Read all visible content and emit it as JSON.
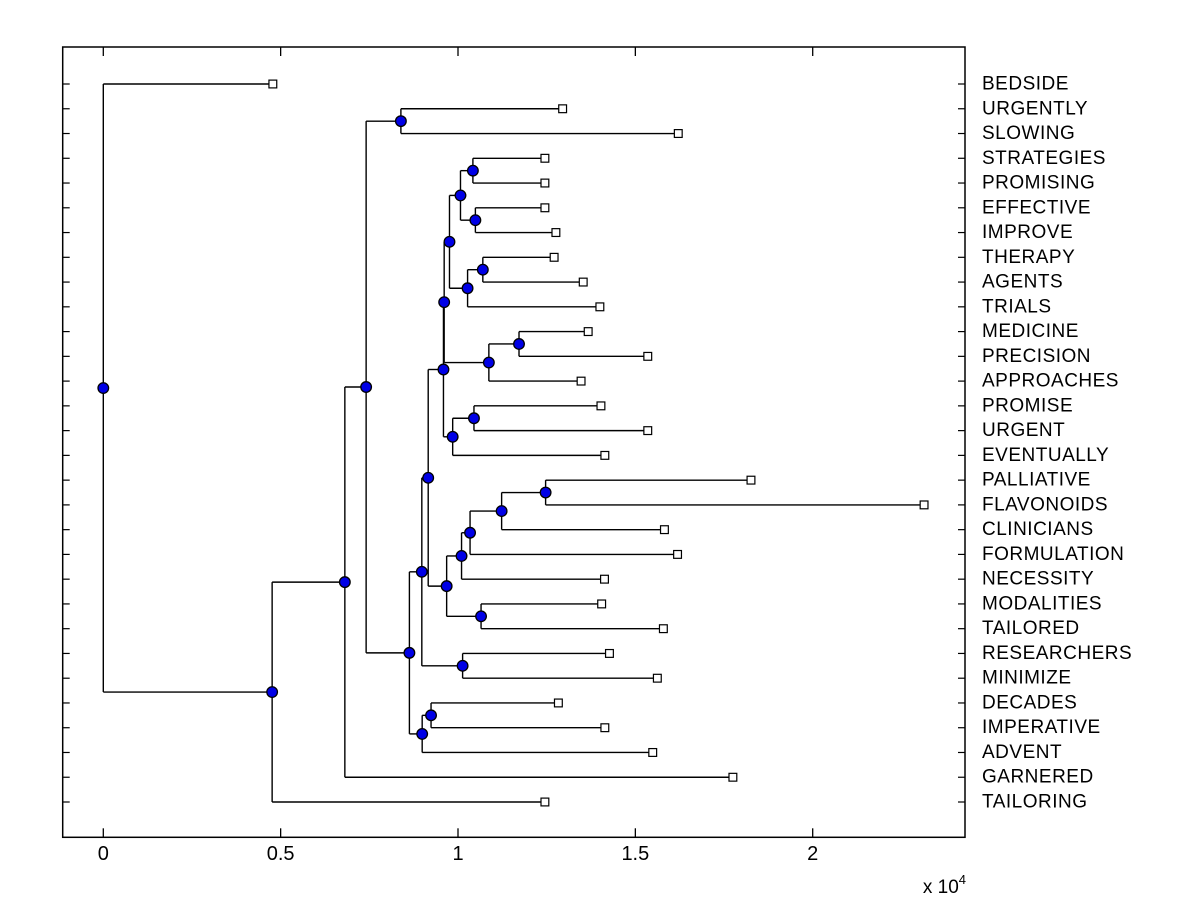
{
  "chart_data": {
    "type": "dendrogram",
    "title": "",
    "orientation": "left-to-right",
    "x_axis": {
      "tick_labels": [
        "0",
        "0.5",
        "1",
        "1.5",
        "2"
      ],
      "tick_values": [
        0,
        0.5,
        1,
        1.5,
        2
      ],
      "scale_text": "x 10",
      "scale_exponent": "4",
      "unit_multiplier": 10000,
      "range": [
        -0.115,
        2.43
      ]
    },
    "y_axis": {
      "rows": 30,
      "tick_every_row": true
    },
    "legend": null,
    "grid": false,
    "leaf_order": [
      "BEDSIDE",
      "URGENTLY",
      "SLOWING",
      "STRATEGIES",
      "PROMISING",
      "EFFECTIVE",
      "IMPROVE",
      "THERAPY",
      "AGENTS",
      "TRIALS",
      "MEDICINE",
      "PRECISION",
      "APPROACHES",
      "PROMISE",
      "URGENT",
      "EVENTUALLY",
      "PALLIATIVE",
      "FLAVONOIDS",
      "CLINICIANS",
      "FORMULATION",
      "NECESSITY",
      "MODALITIES",
      "TAILORED",
      "RESEARCHERS",
      "MINIMIZE",
      "DECADES",
      "IMPERATIVE",
      "ADVENT",
      "GARNERED",
      "TAILORING"
    ],
    "tree": {
      "x": 0.0,
      "c": [
        {
          "x": 0.478,
          "label": "BEDSIDE"
        },
        {
          "x": 0.476,
          "c": [
            {
              "x": 0.681,
              "c": [
                {
                  "x": 0.741,
                  "c": [
                    {
                      "x": 0.839,
                      "c": [
                        {
                          "x": 1.295,
                          "label": "URGENTLY"
                        },
                        {
                          "x": 1.621,
                          "label": "SLOWING"
                        }
                      ]
                    },
                    {
                      "x": 0.863,
                      "c": [
                        {
                          "x": 0.898,
                          "c": [
                            {
                              "x": 0.916,
                              "c": [
                                {
                                  "x": 0.959,
                                  "c": [
                                    {
                                      "x": 0.961,
                                      "c": [
                                        {
                                          "x": 0.976,
                                          "c": [
                                            {
                                              "x": 1.007,
                                              "c": [
                                                {
                                                  "x": 1.042,
                                                  "c": [
                                                    {
                                                      "x": 1.245,
                                                      "label": "STRATEGIES"
                                                    },
                                                    {
                                                      "x": 1.245,
                                                      "label": "PROMISING"
                                                    }
                                                  ]
                                                },
                                                {
                                                  "x": 1.049,
                                                  "c": [
                                                    {
                                                      "x": 1.245,
                                                      "label": "EFFECTIVE"
                                                    },
                                                    {
                                                      "x": 1.276,
                                                      "label": "IMPROVE"
                                                    }
                                                  ]
                                                }
                                              ]
                                            },
                                            {
                                              "x": 1.027,
                                              "c": [
                                                {
                                                  "x": 1.07,
                                                  "c": [
                                                    {
                                                      "x": 1.271,
                                                      "label": "THERAPY"
                                                    },
                                                    {
                                                      "x": 1.353,
                                                      "label": "AGENTS"
                                                    }
                                                  ]
                                                },
                                                {
                                                  "x": 1.4,
                                                  "label": "TRIALS"
                                                }
                                              ]
                                            }
                                          ]
                                        },
                                        {
                                          "x": 1.087,
                                          "c": [
                                            {
                                              "x": 1.172,
                                              "c": [
                                                {
                                                  "x": 1.367,
                                                  "label": "MEDICINE"
                                                },
                                                {
                                                  "x": 1.535,
                                                  "label": "PRECISION"
                                                }
                                              ]
                                            },
                                            {
                                              "x": 1.347,
                                              "label": "APPROACHES"
                                            }
                                          ]
                                        }
                                      ]
                                    },
                                    {
                                      "x": 0.985,
                                      "c": [
                                        {
                                          "x": 1.045,
                                          "c": [
                                            {
                                              "x": 1.403,
                                              "label": "PROMISE"
                                            },
                                            {
                                              "x": 1.535,
                                              "label": "URGENT"
                                            }
                                          ]
                                        },
                                        {
                                          "x": 1.414,
                                          "label": "EVENTUALLY"
                                        }
                                      ]
                                    }
                                  ]
                                },
                                {
                                  "x": 0.968,
                                  "c": [
                                    {
                                      "x": 1.01,
                                      "c": [
                                        {
                                          "x": 1.034,
                                          "c": [
                                            {
                                              "x": 1.123,
                                              "c": [
                                                {
                                                  "x": 1.247,
                                                  "c": [
                                                    {
                                                      "x": 1.826,
                                                      "label": "PALLIATIVE"
                                                    },
                                                    {
                                                      "x": 2.314,
                                                      "label": "FLAVONOIDS"
                                                    }
                                                  ]
                                                },
                                                {
                                                  "x": 1.582,
                                                  "label": "CLINICIANS"
                                                }
                                              ]
                                            },
                                            {
                                              "x": 1.619,
                                              "label": "FORMULATION"
                                            }
                                          ]
                                        },
                                        {
                                          "x": 1.413,
                                          "label": "NECESSITY"
                                        }
                                      ]
                                    },
                                    {
                                      "x": 1.065,
                                      "c": [
                                        {
                                          "x": 1.405,
                                          "label": "MODALITIES"
                                        },
                                        {
                                          "x": 1.579,
                                          "label": "TAILORED"
                                        }
                                      ]
                                    }
                                  ]
                                }
                              ]
                            },
                            {
                              "x": 1.013,
                              "c": [
                                {
                                  "x": 1.427,
                                  "label": "RESEARCHERS"
                                },
                                {
                                  "x": 1.562,
                                  "label": "MINIMIZE"
                                }
                              ]
                            }
                          ]
                        },
                        {
                          "x": 0.899,
                          "c": [
                            {
                              "x": 0.924,
                              "c": [
                                {
                                  "x": 1.283,
                                  "label": "DECADES"
                                },
                                {
                                  "x": 1.414,
                                  "label": "IMPERATIVE"
                                }
                              ]
                            },
                            {
                              "x": 1.549,
                              "label": "ADVENT"
                            }
                          ]
                        }
                      ]
                    }
                  ]
                },
                {
                  "x": 1.775,
                  "label": "GARNERED"
                }
              ]
            },
            {
              "x": 1.245,
              "label": "TAILORING"
            }
          ]
        }
      ]
    },
    "style": {
      "background_color": "#ffffff",
      "branch_color": "#000000",
      "internal_node_fill": "#0000e6",
      "internal_node_edge": "#000000",
      "leaf_marker_fill": "#ffffff",
      "leaf_marker_edge": "#000000",
      "label_color": "#000000"
    }
  }
}
